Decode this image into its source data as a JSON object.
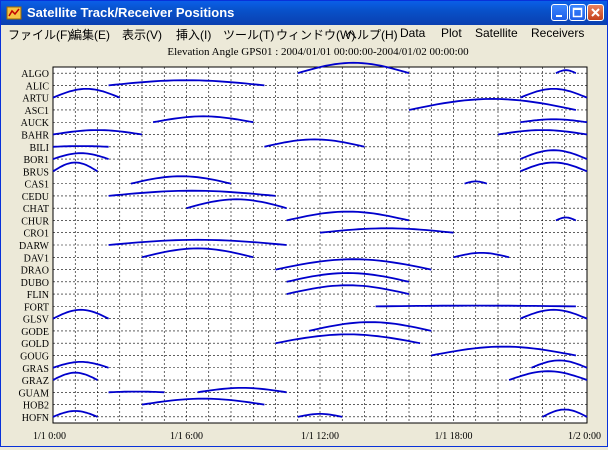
{
  "window": {
    "title": "Satellite Track/Receiver Positions",
    "buttons": {
      "minimize": "minimize-icon",
      "maximize": "maximize-icon",
      "close": "close-icon"
    }
  },
  "menu": [
    {
      "label": "ファイル(F)"
    },
    {
      "label": "編集(E)"
    },
    {
      "label": "表示(V)"
    },
    {
      "label": "挿入(I)"
    },
    {
      "label": "ツール(T)"
    },
    {
      "label": "ウィンドウ(W)"
    },
    {
      "label": "ヘルプ(H)"
    },
    {
      "label": "Data"
    },
    {
      "label": "Plot"
    },
    {
      "label": "Satellite"
    },
    {
      "label": "Receivers"
    }
  ],
  "chart_data": {
    "type": "line",
    "title": "Elevation Angle GPS01 : 2004/01/01 00:00:00-2004/01/02 00:00:00",
    "receivers": [
      "ALGO",
      "ALIC",
      "ARTU",
      "ASC1",
      "AUCK",
      "BAHR",
      "BILI",
      "BOR1",
      "BRUS",
      "CAS1",
      "CEDU",
      "CHAT",
      "CHUR",
      "CRO1",
      "DARW",
      "DAV1",
      "DRAO",
      "DUBO",
      "FLIN",
      "FORT",
      "GLSV",
      "GODE",
      "GOLD",
      "GOUG",
      "GRAS",
      "GRAZ",
      "GUAM",
      "HOB2",
      "HOFN"
    ],
    "x_ticks": [
      "1/1  0:00",
      "1/1  6:00",
      "1/1 12:00",
      "1/1 18:00",
      "1/2  0:00"
    ],
    "x_range_hours": [
      0,
      24
    ],
    "grid": true,
    "series_color": "#0000cc",
    "passes": [
      {
        "receiver": "ALGO",
        "arcs": [
          [
            11,
            16,
            0.7
          ],
          [
            22.6,
            23.5,
            0.2
          ]
        ]
      },
      {
        "receiver": "ALIC",
        "arcs": [
          [
            2.5,
            9.5,
            0.35
          ]
        ]
      },
      {
        "receiver": "ARTU",
        "arcs": [
          [
            0,
            3,
            0.6
          ],
          [
            21,
            24,
            0.6
          ]
        ]
      },
      {
        "receiver": "ASC1",
        "arcs": [
          [
            16,
            23.5,
            0.75
          ]
        ]
      },
      {
        "receiver": "AUCK",
        "arcs": [
          [
            4.5,
            9,
            0.4
          ],
          [
            21,
            24,
            0.2
          ]
        ]
      },
      {
        "receiver": "BAHR",
        "arcs": [
          [
            0,
            4,
            0.3
          ],
          [
            20,
            24,
            0.3
          ]
        ]
      },
      {
        "receiver": "BILI",
        "arcs": [
          [
            0,
            2.5,
            0.05
          ],
          [
            9.5,
            14,
            0.5
          ]
        ]
      },
      {
        "receiver": "BOR1",
        "arcs": [
          [
            0,
            2.5,
            0.4
          ],
          [
            21,
            24,
            0.6
          ]
        ]
      },
      {
        "receiver": "BRUS",
        "arcs": [
          [
            0,
            2,
            0.6
          ],
          [
            21,
            24,
            0.6
          ]
        ]
      },
      {
        "receiver": "CAS1",
        "arcs": [
          [
            3.5,
            8,
            0.5
          ],
          [
            18.5,
            19.5,
            0.15
          ]
        ]
      },
      {
        "receiver": "CEDU",
        "arcs": [
          [
            2.5,
            10,
            0.35
          ]
        ]
      },
      {
        "receiver": "CHAT",
        "arcs": [
          [
            6,
            10.5,
            0.6
          ]
        ]
      },
      {
        "receiver": "CHUR",
        "arcs": [
          [
            10.5,
            16,
            0.6
          ],
          [
            22.6,
            23.5,
            0.2
          ]
        ]
      },
      {
        "receiver": "CRO1",
        "arcs": [
          [
            12,
            18,
            0.3
          ]
        ]
      },
      {
        "receiver": "DARW",
        "arcs": [
          [
            2.5,
            10.5,
            0.35
          ]
        ]
      },
      {
        "receiver": "DAV1",
        "arcs": [
          [
            4,
            9,
            0.6
          ],
          [
            18,
            20.5,
            0.3
          ]
        ]
      },
      {
        "receiver": "DRAO",
        "arcs": [
          [
            10,
            17,
            0.7
          ]
        ]
      },
      {
        "receiver": "DUBO",
        "arcs": [
          [
            10.5,
            16,
            0.6
          ]
        ]
      },
      {
        "receiver": "FLIN",
        "arcs": [
          [
            10.5,
            16,
            0.6
          ]
        ]
      },
      {
        "receiver": "FORT",
        "arcs": [
          [
            14.5,
            23.5,
            0.05
          ]
        ]
      },
      {
        "receiver": "GLSV",
        "arcs": [
          [
            0,
            2.5,
            0.6
          ],
          [
            21,
            24,
            0.6
          ]
        ]
      },
      {
        "receiver": "GODE",
        "arcs": [
          [
            11.5,
            17,
            0.6
          ]
        ]
      },
      {
        "receiver": "GOLD",
        "arcs": [
          [
            10,
            16.5,
            0.6
          ]
        ]
      },
      {
        "receiver": "GOUG",
        "arcs": [
          [
            17,
            23.5,
            0.6
          ]
        ]
      },
      {
        "receiver": "GRAS",
        "arcs": [
          [
            0,
            2.5,
            0.4
          ],
          [
            21.5,
            24,
            0.5
          ]
        ]
      },
      {
        "receiver": "GRAZ",
        "arcs": [
          [
            0,
            2,
            0.5
          ],
          [
            20.5,
            24,
            0.6
          ]
        ]
      },
      {
        "receiver": "GUAM",
        "arcs": [
          [
            6.5,
            10.5,
            0.3
          ],
          [
            2.5,
            5,
            0.05
          ]
        ]
      },
      {
        "receiver": "HOB2",
        "arcs": [
          [
            4,
            9.5,
            0.4
          ]
        ]
      },
      {
        "receiver": "HOFN",
        "arcs": [
          [
            0,
            2,
            0.4
          ],
          [
            11,
            13,
            0.2
          ],
          [
            22,
            24,
            0.5
          ]
        ]
      }
    ]
  }
}
